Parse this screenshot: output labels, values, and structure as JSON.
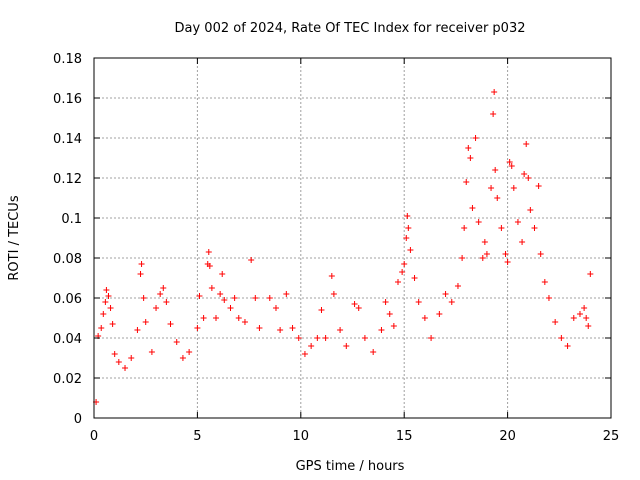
{
  "chart_data": {
    "type": "scatter",
    "title": "Day 002 of 2024, Rate Of TEC Index for receiver p032",
    "xlabel": "GPS time / hours",
    "ylabel": "ROTI / TECUs",
    "xlim": [
      0,
      25
    ],
    "ylim": [
      0,
      0.18
    ],
    "xticks": [
      0,
      5,
      10,
      15,
      20,
      25
    ],
    "xtick_labels": [
      "0",
      "5",
      "10",
      "15",
      "20",
      "25"
    ],
    "yticks": [
      0,
      0.02,
      0.04,
      0.06,
      0.08,
      0.1,
      0.12,
      0.14,
      0.16,
      0.18
    ],
    "ytick_labels": [
      "0",
      "0.02",
      "0.04",
      "0.06",
      "0.08",
      "0.1",
      "0.12",
      "0.14",
      "0.16",
      "0.18"
    ],
    "grid": true,
    "marker": "+",
    "color": "#ff0000",
    "series": [
      {
        "points": [
          [
            0.1,
            0.008
          ],
          [
            0.2,
            0.041
          ],
          [
            0.35,
            0.045
          ],
          [
            0.45,
            0.052
          ],
          [
            0.55,
            0.058
          ],
          [
            0.6,
            0.064
          ],
          [
            0.7,
            0.061
          ],
          [
            0.8,
            0.055
          ],
          [
            0.9,
            0.047
          ],
          [
            1.0,
            0.032
          ],
          [
            1.2,
            0.028
          ],
          [
            1.5,
            0.025
          ],
          [
            1.8,
            0.03
          ],
          [
            2.1,
            0.044
          ],
          [
            2.25,
            0.072
          ],
          [
            2.3,
            0.077
          ],
          [
            2.4,
            0.06
          ],
          [
            2.5,
            0.048
          ],
          [
            2.8,
            0.033
          ],
          [
            3.0,
            0.055
          ],
          [
            3.2,
            0.062
          ],
          [
            3.35,
            0.065
          ],
          [
            3.5,
            0.058
          ],
          [
            3.7,
            0.047
          ],
          [
            4.0,
            0.038
          ],
          [
            4.3,
            0.03
          ],
          [
            4.6,
            0.033
          ],
          [
            5.0,
            0.045
          ],
          [
            5.1,
            0.061
          ],
          [
            5.3,
            0.05
          ],
          [
            5.5,
            0.077
          ],
          [
            5.55,
            0.083
          ],
          [
            5.6,
            0.076
          ],
          [
            5.7,
            0.065
          ],
          [
            5.9,
            0.05
          ],
          [
            6.1,
            0.062
          ],
          [
            6.2,
            0.072
          ],
          [
            6.3,
            0.059
          ],
          [
            6.6,
            0.055
          ],
          [
            6.8,
            0.06
          ],
          [
            7.0,
            0.05
          ],
          [
            7.3,
            0.048
          ],
          [
            7.6,
            0.079
          ],
          [
            7.8,
            0.06
          ],
          [
            8.0,
            0.045
          ],
          [
            8.5,
            0.06
          ],
          [
            8.8,
            0.055
          ],
          [
            9.0,
            0.044
          ],
          [
            9.3,
            0.062
          ],
          [
            9.6,
            0.045
          ],
          [
            9.9,
            0.04
          ],
          [
            10.2,
            0.032
          ],
          [
            10.5,
            0.036
          ],
          [
            10.8,
            0.04
          ],
          [
            11.0,
            0.054
          ],
          [
            11.2,
            0.04
          ],
          [
            11.5,
            0.071
          ],
          [
            11.6,
            0.062
          ],
          [
            11.9,
            0.044
          ],
          [
            12.2,
            0.036
          ],
          [
            12.6,
            0.057
          ],
          [
            12.8,
            0.055
          ],
          [
            13.1,
            0.04
          ],
          [
            13.5,
            0.033
          ],
          [
            13.9,
            0.044
          ],
          [
            14.1,
            0.058
          ],
          [
            14.3,
            0.052
          ],
          [
            14.5,
            0.046
          ],
          [
            14.7,
            0.068
          ],
          [
            14.9,
            0.073
          ],
          [
            15.0,
            0.077
          ],
          [
            15.1,
            0.09
          ],
          [
            15.15,
            0.101
          ],
          [
            15.2,
            0.095
          ],
          [
            15.3,
            0.084
          ],
          [
            15.5,
            0.07
          ],
          [
            15.7,
            0.058
          ],
          [
            16.0,
            0.05
          ],
          [
            16.3,
            0.04
          ],
          [
            16.7,
            0.052
          ],
          [
            17.0,
            0.062
          ],
          [
            17.3,
            0.058
          ],
          [
            17.6,
            0.066
          ],
          [
            17.8,
            0.08
          ],
          [
            17.9,
            0.095
          ],
          [
            18.0,
            0.118
          ],
          [
            18.1,
            0.135
          ],
          [
            18.2,
            0.13
          ],
          [
            18.3,
            0.105
          ],
          [
            18.45,
            0.14
          ],
          [
            18.6,
            0.098
          ],
          [
            18.8,
            0.08
          ],
          [
            18.9,
            0.088
          ],
          [
            19.0,
            0.082
          ],
          [
            19.2,
            0.115
          ],
          [
            19.3,
            0.152
          ],
          [
            19.35,
            0.163
          ],
          [
            19.4,
            0.124
          ],
          [
            19.5,
            0.11
          ],
          [
            19.7,
            0.095
          ],
          [
            19.9,
            0.082
          ],
          [
            20.0,
            0.078
          ],
          [
            20.1,
            0.128
          ],
          [
            20.2,
            0.126
          ],
          [
            20.3,
            0.115
          ],
          [
            20.5,
            0.098
          ],
          [
            20.7,
            0.088
          ],
          [
            20.8,
            0.122
          ],
          [
            20.9,
            0.137
          ],
          [
            21.0,
            0.12
          ],
          [
            21.1,
            0.104
          ],
          [
            21.3,
            0.095
          ],
          [
            21.5,
            0.116
          ],
          [
            21.6,
            0.082
          ],
          [
            21.8,
            0.068
          ],
          [
            22.0,
            0.06
          ],
          [
            22.3,
            0.048
          ],
          [
            22.6,
            0.04
          ],
          [
            22.9,
            0.036
          ],
          [
            23.2,
            0.05
          ],
          [
            23.5,
            0.052
          ],
          [
            23.7,
            0.055
          ],
          [
            23.8,
            0.05
          ],
          [
            23.9,
            0.046
          ],
          [
            24.0,
            0.072
          ]
        ]
      }
    ]
  }
}
